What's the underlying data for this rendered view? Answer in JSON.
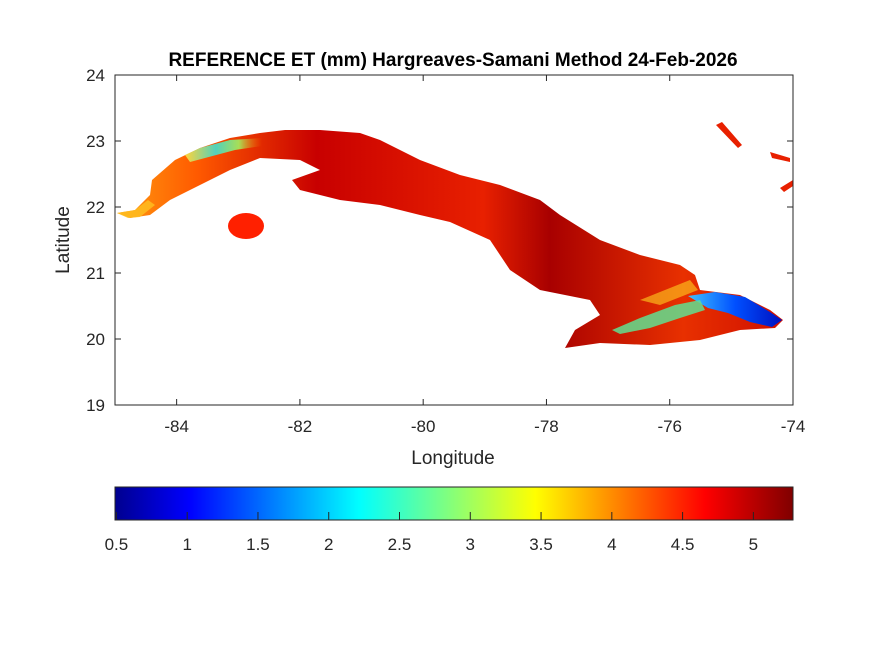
{
  "chart_data": {
    "type": "heatmap",
    "title": "REFERENCE ET (mm) Hargreaves-Samani Method  24-Feb-2026",
    "xlabel": "Longitude",
    "ylabel": "Latitude",
    "xlim": [
      -85,
      -74
    ],
    "ylim": [
      19,
      24
    ],
    "xticks": [
      -84,
      -82,
      -80,
      -78,
      -76,
      -74
    ],
    "xtick_labels": [
      "-84",
      "-82",
      "-80",
      "-78",
      "-76",
      "-74"
    ],
    "yticks": [
      19,
      20,
      21,
      22,
      23,
      24
    ],
    "ytick_labels": [
      "19",
      "20",
      "21",
      "22",
      "23",
      "24"
    ],
    "grid": false,
    "region": "Cuba",
    "colormap": "jet",
    "colorbar": {
      "location": "bottom",
      "clim": [
        0.49,
        5.28
      ],
      "ticks": [
        0.5,
        1,
        1.5,
        2,
        2.5,
        3,
        3.5,
        4,
        4.5,
        5
      ],
      "tick_labels": [
        "0.5",
        "1",
        "1.5",
        "2",
        "2.5",
        "3",
        "3.5",
        "4",
        "4.5",
        "5"
      ]
    },
    "value_summary": {
      "dominant_range": [
        4.3,
        5.3
      ],
      "west_tip_min": 2.5,
      "east_min": 1.2
    }
  }
}
